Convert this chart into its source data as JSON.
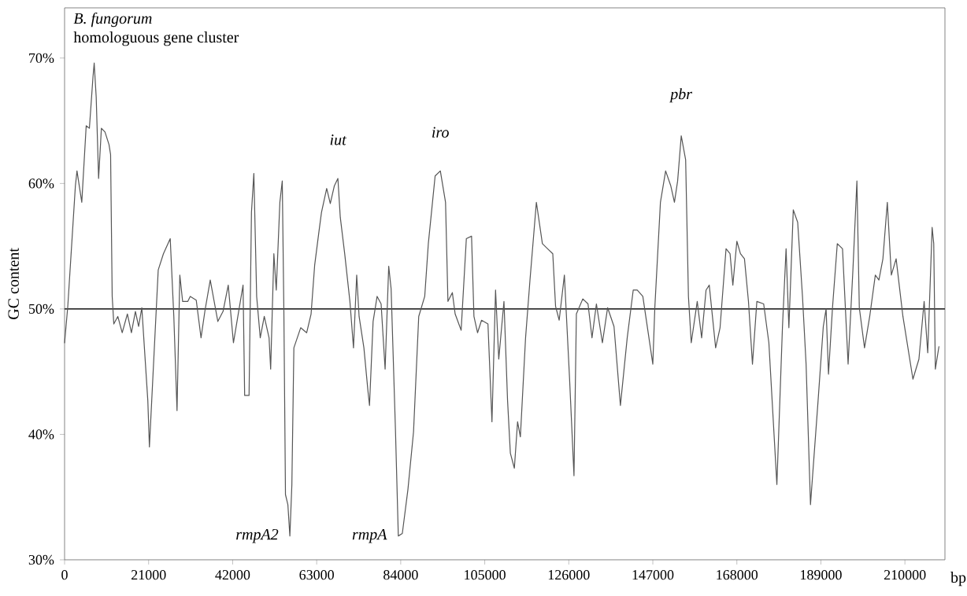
{
  "chart_data": {
    "type": "line",
    "xlabel": "bp",
    "ylabel": "GC content",
    "xlim": [
      0,
      220000
    ],
    "ylim": [
      30,
      74
    ],
    "xticks": [
      0,
      21000,
      42000,
      63000,
      84000,
      105000,
      126000,
      147000,
      168000,
      189000,
      210000
    ],
    "yticks": [
      {
        "value": 30,
        "label": "30%"
      },
      {
        "value": 40,
        "label": "40%"
      },
      {
        "value": 50,
        "label": "50%"
      },
      {
        "value": 60,
        "label": "60%"
      },
      {
        "value": 70,
        "label": "70%"
      }
    ],
    "ref_lines": [
      {
        "axis": "y",
        "value": 50,
        "color": "#333333"
      }
    ],
    "annotations": [
      "*B. fungorum*",
      "homologuous gene cluster",
      {
        "text": "iut",
        "x": 68300,
        "y": 60.4
      },
      {
        "text": "iro",
        "x": 93900,
        "y": 61
      },
      {
        "text": "pbr",
        "x": 154100,
        "y": 63.8
      },
      {
        "text": "rmpA2",
        "x": 56300,
        "y": 31.9
      },
      {
        "text": "rmpA",
        "x": 83400,
        "y": 31.9
      }
    ],
    "series": [
      {
        "color": "#555555",
        "line_style": "solid",
        "x": [
          0,
          800,
          2700,
          3100,
          4300,
          5400,
          6200,
          7100,
          7400,
          7900,
          8500,
          9200,
          10100,
          11100,
          11500,
          11900,
          12300,
          13300,
          14400,
          15700,
          16700,
          17700,
          18500,
          19300,
          20800,
          21200,
          23400,
          24700,
          26400,
          27300,
          28100,
          28800,
          29500,
          30800,
          31400,
          32900,
          34100,
          35100,
          36400,
          38300,
          39600,
          40900,
          42200,
          44600,
          45000,
          46100,
          46700,
          47300,
          48000,
          48900,
          49900,
          51100,
          51500,
          52300,
          52900,
          53800,
          54400,
          54800,
          55200,
          55800,
          56300,
          56800,
          57300,
          59000,
          60500,
          61600,
          62500,
          63500,
          64200,
          65500,
          66400,
          67400,
          68300,
          68900,
          70000,
          71300,
          72200,
          73000,
          73600,
          74800,
          75800,
          76200,
          77100,
          78100,
          79100,
          80100,
          81000,
          81600,
          82700,
          83400,
          84400,
          85800,
          87200,
          88500,
          90000,
          90900,
          92600,
          93900,
          95200,
          95800,
          96900,
          97600,
          99100,
          100400,
          101700,
          102300,
          103200,
          104200,
          105800,
          106800,
          107700,
          108500,
          109800,
          110700,
          111400,
          112400,
          113200,
          113900,
          115200,
          116300,
          117900,
          119400,
          120700,
          122000,
          122700,
          123600,
          124900,
          126200,
          127300,
          127900,
          129500,
          130800,
          131800,
          132900,
          134400,
          135700,
          137300,
          138900,
          140600,
          142100,
          143100,
          144500,
          147000,
          147500,
          148900,
          150200,
          151500,
          152400,
          153200,
          154100,
          155200,
          155900,
          156600,
          158100,
          159200,
          160300,
          161100,
          162700,
          163800,
          165300,
          166300,
          167000,
          168000,
          168900,
          169900,
          170900,
          171900,
          173000,
          174700,
          176000,
          178000,
          179400,
          180300,
          181000,
          182100,
          183200,
          184400,
          185300,
          186400,
          188300,
          189600,
          190300,
          190900,
          191900,
          193100,
          194400,
          195800,
          197000,
          198000,
          198600,
          199900,
          201200,
          202600,
          203500,
          204500,
          205600,
          206600,
          207800,
          209500,
          212000,
          213500,
          214800,
          215700,
          216800,
          217200,
          217600,
          218500
        ],
        "values": [
          47.3,
          50.2,
          59.8,
          61,
          58.5,
          64.6,
          64.4,
          68.5,
          69.6,
          66.9,
          60.4,
          64.4,
          64.1,
          63.1,
          62.3,
          51,
          48.8,
          49.4,
          48.1,
          49.6,
          48.1,
          49.8,
          48.6,
          50.1,
          42.7,
          39,
          53.1,
          54.4,
          55.6,
          49.4,
          41.9,
          52.7,
          50.6,
          50.6,
          51,
          50.7,
          47.7,
          49.9,
          52.3,
          49,
          49.8,
          51.9,
          47.3,
          51.9,
          43.1,
          43.1,
          57.7,
          60.8,
          51,
          47.7,
          49.4,
          47.7,
          45.2,
          54.4,
          51.5,
          58.5,
          60.2,
          49.8,
          35.2,
          34.4,
          31.9,
          36,
          46.9,
          48.5,
          48.1,
          49.6,
          53.5,
          56,
          57.7,
          59.6,
          58.4,
          59.8,
          60.4,
          57.3,
          54.4,
          50.6,
          46.9,
          52.7,
          49.4,
          46.9,
          43.5,
          42.3,
          49,
          51,
          50.4,
          45.2,
          53.4,
          51.6,
          40.2,
          31.9,
          32.1,
          35.6,
          40.2,
          49.4,
          51,
          55.2,
          60.6,
          61,
          58.5,
          50.6,
          51.3,
          49.6,
          48.3,
          55.6,
          55.8,
          49.4,
          48.1,
          49.1,
          48.8,
          41,
          51.5,
          46,
          50.6,
          42.7,
          38.5,
          37.3,
          41,
          39.8,
          47.7,
          52.3,
          58.5,
          55.2,
          54.8,
          54.4,
          50.2,
          49.1,
          52.7,
          44.4,
          36.7,
          49.6,
          50.8,
          50.4,
          47.7,
          50.4,
          47.3,
          50.1,
          48.6,
          42.3,
          47.7,
          51.5,
          51.5,
          51,
          45.6,
          50.1,
          58.5,
          61,
          59.8,
          58.5,
          60.2,
          63.8,
          61.9,
          51,
          47.3,
          50.6,
          47.7,
          51.5,
          51.9,
          46.9,
          48.5,
          54.8,
          54.4,
          51.9,
          55.4,
          54.4,
          54,
          50.6,
          45.6,
          50.6,
          50.4,
          47.3,
          36,
          48.6,
          54.8,
          48.5,
          57.9,
          56.9,
          51,
          45.6,
          34.4,
          42.7,
          48.6,
          50,
          44.8,
          50.1,
          55.2,
          54.8,
          45.6,
          53.1,
          60.2,
          50.1,
          46.9,
          49.4,
          52.7,
          52.3,
          54,
          58.5,
          52.7,
          54,
          49.4,
          44.4,
          46,
          50.6,
          46.5,
          56.5,
          55.2,
          45.2,
          47
        ]
      }
    ]
  }
}
